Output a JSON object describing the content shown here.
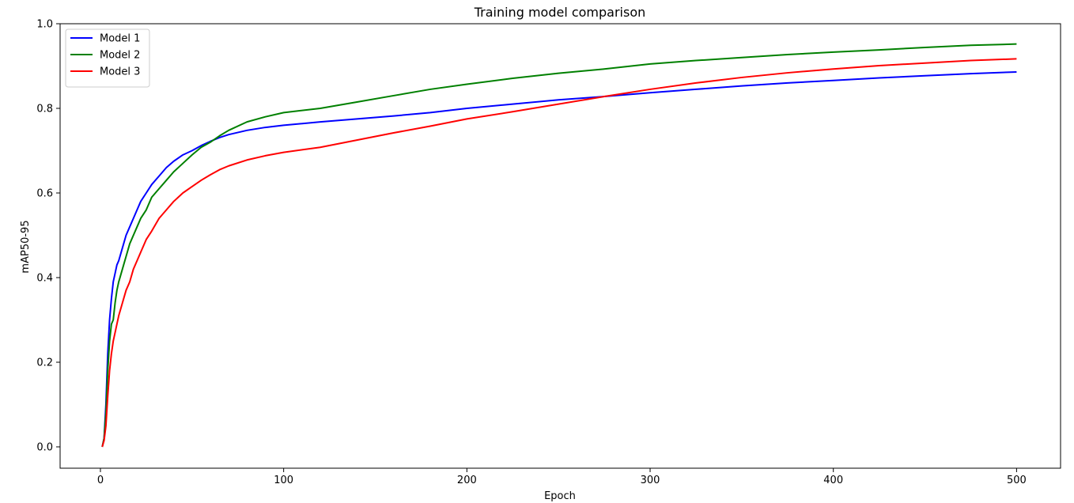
{
  "chart_data": {
    "type": "line",
    "title": "Training model comparison",
    "xlabel": "Epoch",
    "ylabel": "mAP50-95",
    "xlim": [
      -22,
      524
    ],
    "ylim": [
      0.0,
      1.0
    ],
    "xticks": [
      0,
      100,
      200,
      300,
      400,
      500
    ],
    "yticks": [
      0.0,
      0.2,
      0.4,
      0.6,
      0.8,
      1.0
    ],
    "xtick_labels": [
      "0",
      "100",
      "200",
      "300",
      "400",
      "500"
    ],
    "ytick_labels": [
      "0.0",
      "0.2",
      "0.4",
      "0.6",
      "0.8",
      "1.0"
    ],
    "grid": false,
    "legend_position": "top-left",
    "series": [
      {
        "name": "Model 1",
        "color": "#0000ff",
        "points": [
          [
            1,
            0.0
          ],
          [
            2,
            0.02
          ],
          [
            3,
            0.1
          ],
          [
            4,
            0.22
          ],
          [
            5,
            0.3
          ],
          [
            6,
            0.35
          ],
          [
            7,
            0.39
          ],
          [
            8,
            0.41
          ],
          [
            9,
            0.43
          ],
          [
            10,
            0.44
          ],
          [
            12,
            0.47
          ],
          [
            14,
            0.5
          ],
          [
            16,
            0.52
          ],
          [
            18,
            0.54
          ],
          [
            20,
            0.56
          ],
          [
            22,
            0.58
          ],
          [
            25,
            0.6
          ],
          [
            28,
            0.62
          ],
          [
            32,
            0.64
          ],
          [
            36,
            0.66
          ],
          [
            40,
            0.675
          ],
          [
            45,
            0.69
          ],
          [
            50,
            0.7
          ],
          [
            55,
            0.712
          ],
          [
            60,
            0.722
          ],
          [
            65,
            0.731
          ],
          [
            70,
            0.738
          ],
          [
            80,
            0.748
          ],
          [
            90,
            0.755
          ],
          [
            100,
            0.76
          ],
          [
            120,
            0.768
          ],
          [
            140,
            0.775
          ],
          [
            160,
            0.782
          ],
          [
            180,
            0.79
          ],
          [
            200,
            0.8
          ],
          [
            225,
            0.81
          ],
          [
            250,
            0.82
          ],
          [
            275,
            0.828
          ],
          [
            300,
            0.837
          ],
          [
            325,
            0.845
          ],
          [
            350,
            0.853
          ],
          [
            375,
            0.86
          ],
          [
            400,
            0.866
          ],
          [
            425,
            0.872
          ],
          [
            450,
            0.877
          ],
          [
            475,
            0.882
          ],
          [
            500,
            0.886
          ]
        ]
      },
      {
        "name": "Model 2",
        "color": "#008000",
        "points": [
          [
            1,
            0.0
          ],
          [
            2,
            0.02
          ],
          [
            3,
            0.08
          ],
          [
            4,
            0.18
          ],
          [
            5,
            0.25
          ],
          [
            6,
            0.29
          ],
          [
            7,
            0.3
          ],
          [
            8,
            0.34
          ],
          [
            9,
            0.37
          ],
          [
            10,
            0.39
          ],
          [
            12,
            0.42
          ],
          [
            14,
            0.45
          ],
          [
            16,
            0.48
          ],
          [
            18,
            0.5
          ],
          [
            20,
            0.52
          ],
          [
            22,
            0.54
          ],
          [
            25,
            0.56
          ],
          [
            28,
            0.59
          ],
          [
            32,
            0.61
          ],
          [
            36,
            0.63
          ],
          [
            40,
            0.65
          ],
          [
            45,
            0.67
          ],
          [
            50,
            0.69
          ],
          [
            55,
            0.708
          ],
          [
            60,
            0.72
          ],
          [
            65,
            0.735
          ],
          [
            70,
            0.748
          ],
          [
            80,
            0.768
          ],
          [
            90,
            0.78
          ],
          [
            100,
            0.79
          ],
          [
            120,
            0.8
          ],
          [
            140,
            0.815
          ],
          [
            160,
            0.83
          ],
          [
            180,
            0.845
          ],
          [
            200,
            0.857
          ],
          [
            225,
            0.871
          ],
          [
            250,
            0.883
          ],
          [
            275,
            0.893
          ],
          [
            300,
            0.905
          ],
          [
            325,
            0.913
          ],
          [
            350,
            0.92
          ],
          [
            375,
            0.927
          ],
          [
            400,
            0.933
          ],
          [
            425,
            0.938
          ],
          [
            450,
            0.944
          ],
          [
            475,
            0.949
          ],
          [
            500,
            0.952
          ]
        ]
      },
      {
        "name": "Model 3",
        "color": "#ff0000",
        "points": [
          [
            1,
            0.0
          ],
          [
            2,
            0.015
          ],
          [
            3,
            0.05
          ],
          [
            4,
            0.12
          ],
          [
            5,
            0.18
          ],
          [
            6,
            0.22
          ],
          [
            7,
            0.25
          ],
          [
            8,
            0.27
          ],
          [
            9,
            0.29
          ],
          [
            10,
            0.31
          ],
          [
            12,
            0.34
          ],
          [
            14,
            0.37
          ],
          [
            16,
            0.39
          ],
          [
            18,
            0.42
          ],
          [
            20,
            0.44
          ],
          [
            22,
            0.46
          ],
          [
            25,
            0.49
          ],
          [
            28,
            0.51
          ],
          [
            32,
            0.54
          ],
          [
            36,
            0.56
          ],
          [
            40,
            0.58
          ],
          [
            45,
            0.6
          ],
          [
            50,
            0.615
          ],
          [
            55,
            0.63
          ],
          [
            60,
            0.643
          ],
          [
            65,
            0.655
          ],
          [
            70,
            0.664
          ],
          [
            80,
            0.678
          ],
          [
            90,
            0.688
          ],
          [
            100,
            0.696
          ],
          [
            120,
            0.708
          ],
          [
            140,
            0.725
          ],
          [
            160,
            0.742
          ],
          [
            180,
            0.758
          ],
          [
            200,
            0.775
          ],
          [
            225,
            0.792
          ],
          [
            250,
            0.81
          ],
          [
            275,
            0.828
          ],
          [
            300,
            0.845
          ],
          [
            325,
            0.86
          ],
          [
            350,
            0.873
          ],
          [
            375,
            0.884
          ],
          [
            400,
            0.893
          ],
          [
            425,
            0.901
          ],
          [
            450,
            0.907
          ],
          [
            475,
            0.913
          ],
          [
            500,
            0.917
          ]
        ]
      }
    ]
  }
}
